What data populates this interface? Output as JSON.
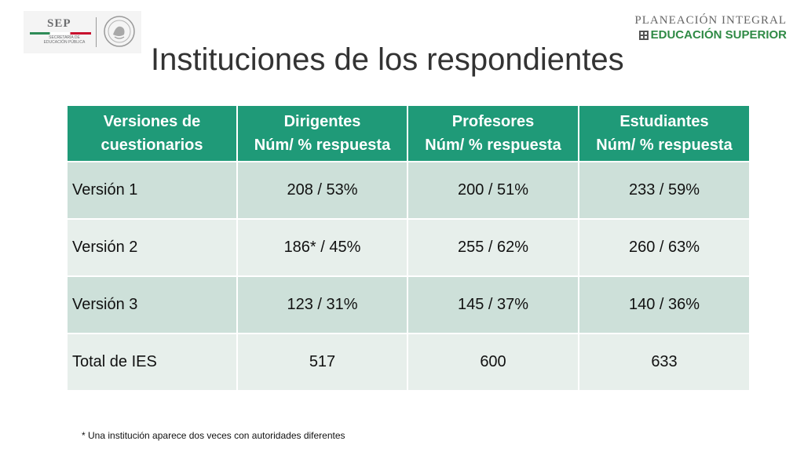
{
  "header": {
    "sep_logo": {
      "name": "SEP",
      "subtitle_line1": "SECRETARÍA DE",
      "subtitle_line2": "EDUCACIÓN PÚBLICA"
    },
    "planeacion_logo": {
      "line1": "PLANEACIÓN INTEGRAL",
      "line2": "EDUCACIÓN SUPERIOR",
      "accent_color": "#2f8a45"
    }
  },
  "title": "Instituciones de los respondientes",
  "table": {
    "header_color": "#1f9a78",
    "columns": [
      {
        "line1": "Versiones de",
        "line2": "cuestionarios"
      },
      {
        "line1": "Dirigentes",
        "line2": "Núm/ % respuesta"
      },
      {
        "line1": "Profesores",
        "line2": "Núm/ % respuesta"
      },
      {
        "line1": "Estudiantes",
        "line2": "Núm/ % respuesta"
      }
    ],
    "rows": [
      [
        "Versión 1",
        "208 / 53%",
        "200 / 51%",
        "233 / 59%"
      ],
      [
        "Versión 2",
        "186* / 45%",
        "255 / 62%",
        "260 / 63%"
      ],
      [
        "Versión 3",
        "123 / 31%",
        "145 / 37%",
        "140 / 36%"
      ],
      [
        "Total de IES",
        "517",
        "600",
        "633"
      ]
    ]
  },
  "footnote": "* Una institución aparece dos veces con autoridades diferentes"
}
